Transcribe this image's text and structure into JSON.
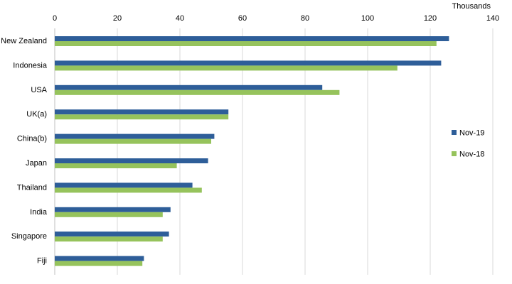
{
  "chart_data": {
    "type": "bar",
    "orientation": "horizontal",
    "unit_label": "Thousands",
    "categories": [
      "New Zealand",
      "Indonesia",
      "USA",
      "UK(a)",
      "China(b)",
      "Japan",
      "Thailand",
      "India",
      "Singapore",
      "Fiji"
    ],
    "series": [
      {
        "name": "Nov-19",
        "color": "#2e5e99",
        "values": [
          126,
          123.5,
          85.5,
          55.5,
          51,
          49,
          44,
          37,
          36.5,
          28.5
        ]
      },
      {
        "name": "Nov-18",
        "color": "#96c35c",
        "values": [
          122,
          109.5,
          91,
          55.5,
          50,
          39,
          47,
          34.5,
          34.5,
          28
        ]
      }
    ],
    "xlim": [
      0,
      140
    ],
    "xticks": [
      0,
      20,
      40,
      60,
      80,
      100,
      120,
      140
    ],
    "grid": true,
    "legend_position": "right"
  }
}
